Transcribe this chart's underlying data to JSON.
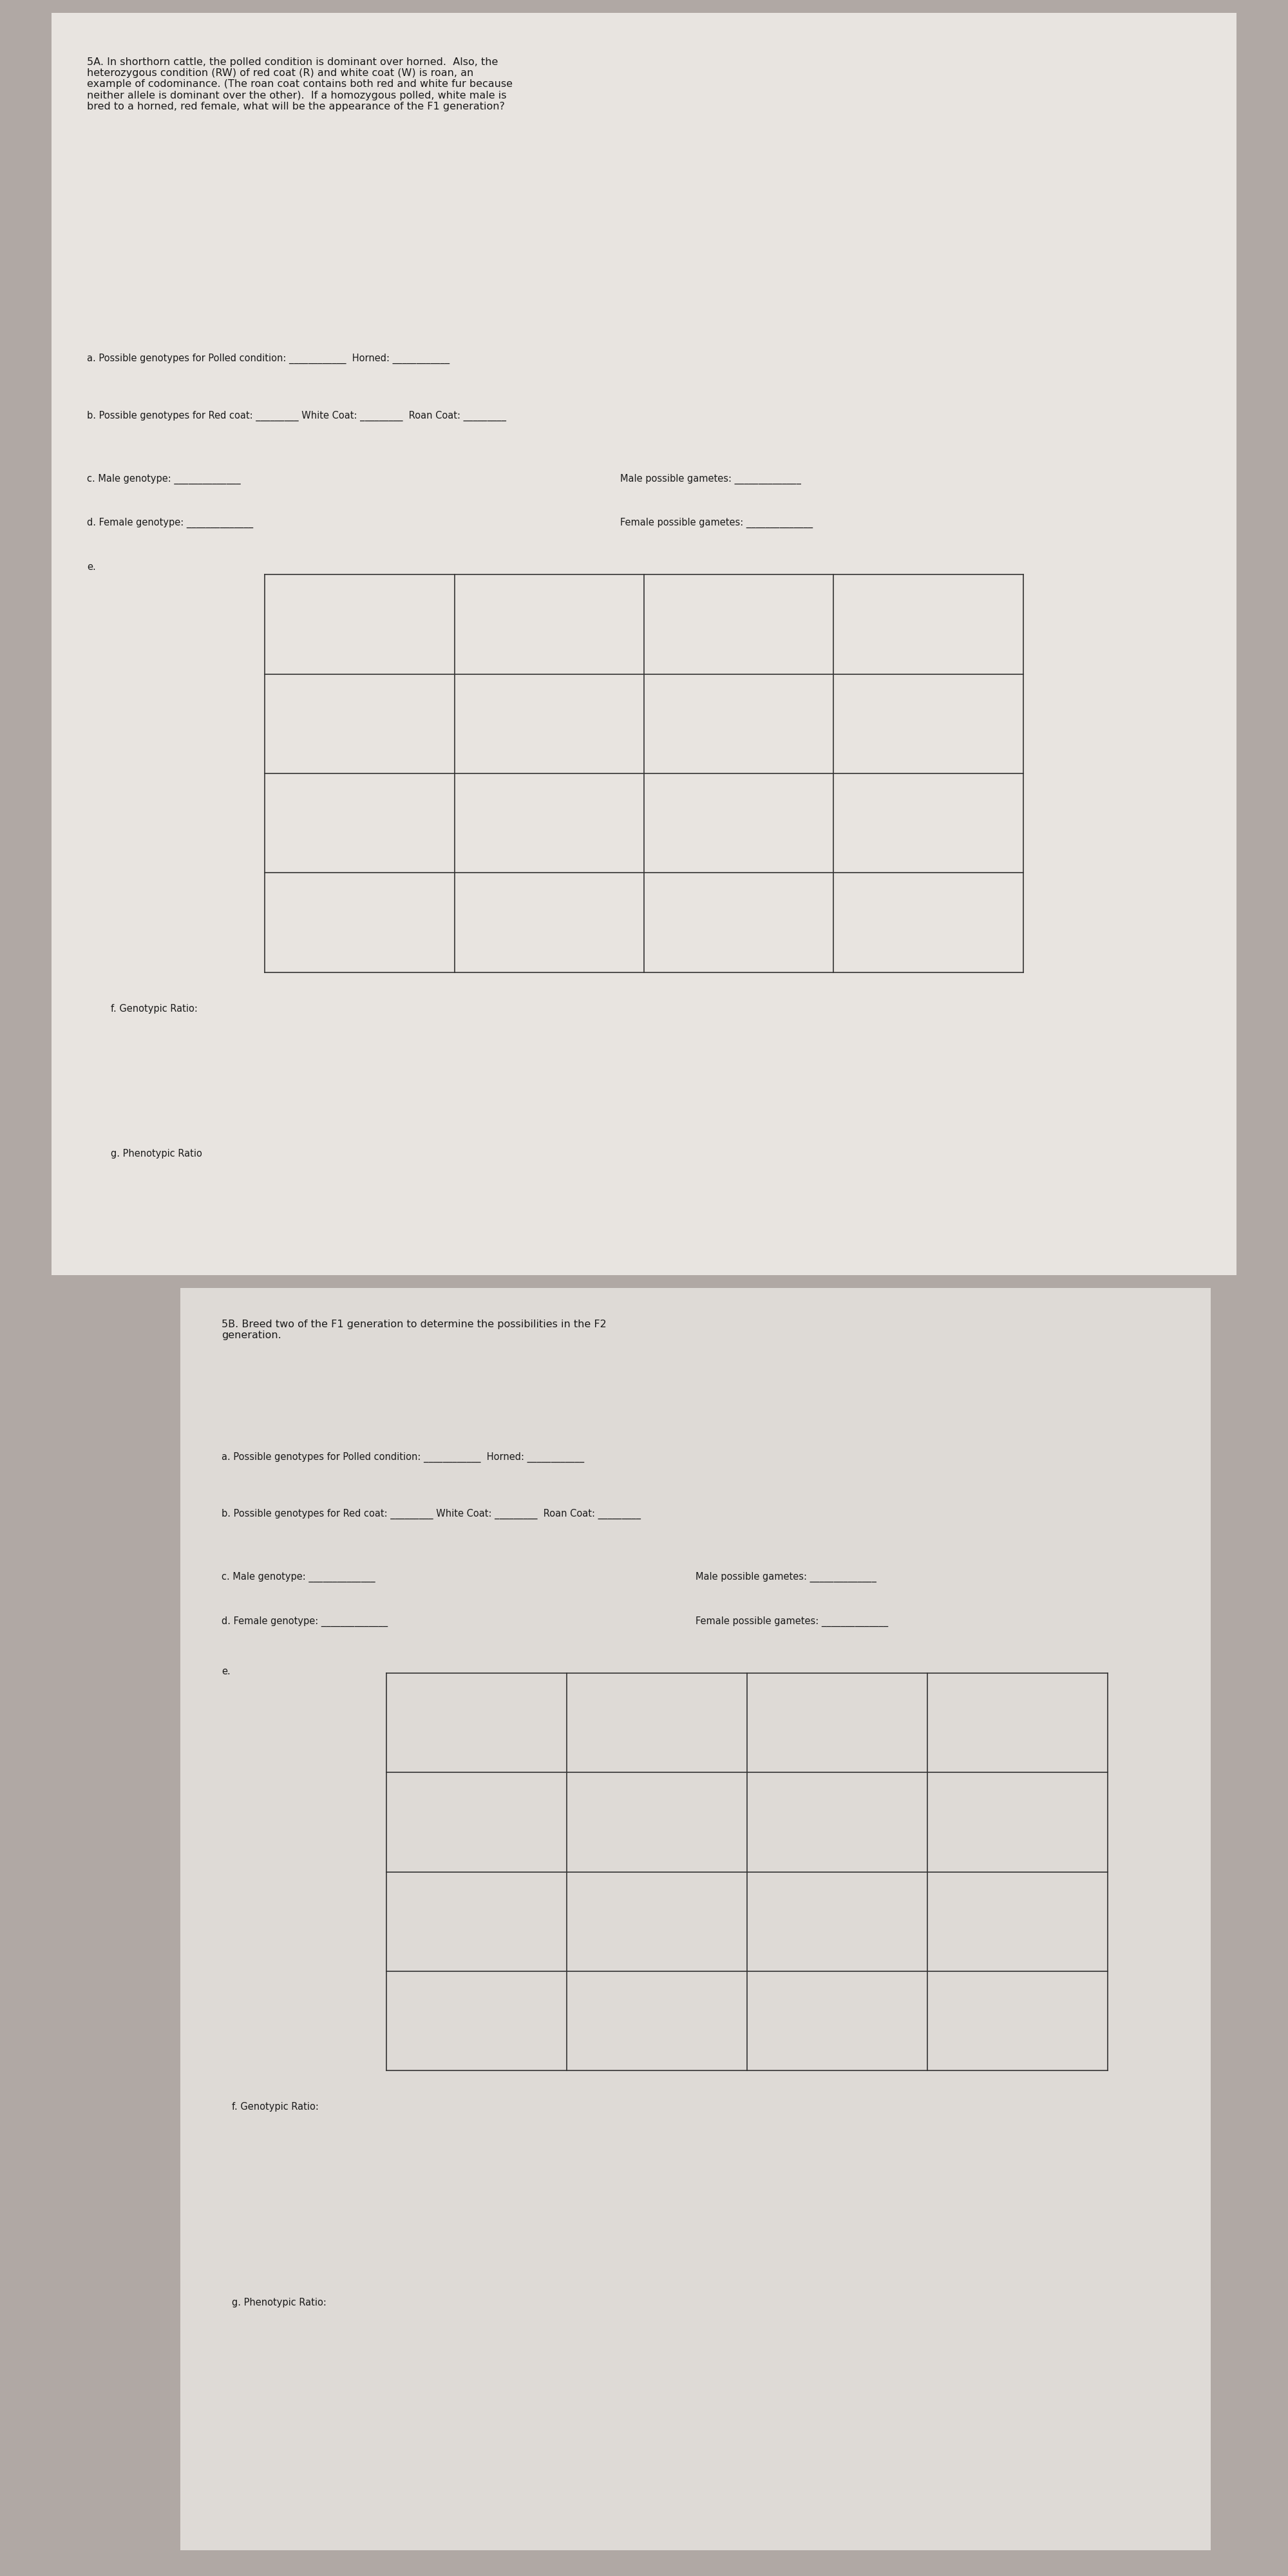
{
  "bg_top": "#c8c0bc",
  "bg_bottom": "#d0c8c4",
  "paper_color": "#e8e4e0",
  "paper2_color": "#dedad6",
  "text_color": "#1a1a1a",
  "line_color": "#333333",
  "title_5A": "5A. In shorthorn cattle, the polled condition is dominant over horned.  Also, the\nheterozygous condition (RW) of red coat (R) and white coat (W) is roan, an\nexample of codominance. (The roan coat contains both red and white fur because\nneither allele is dominant over the other).  If a homozygous polled, white male is\nbred to a horned, red female, what will be the appearance of the F1 generation?",
  "line_a_5A": "a. Possible genotypes for Polled condition: ____________  Horned: ____________",
  "line_b_5A": "b. Possible genotypes for Red coat: _________ White Coat: _________  Roan Coat: _________",
  "line_c_5A": "c. Male genotype: ______________",
  "line_c2_5A": "Male possible gametes: ______________",
  "line_d_5A": "d. Female genotype: ______________",
  "line_d2_5A": "Female possible gametes: ______________",
  "label_e_5A": "e.",
  "label_f_5A": "f. Genotypic Ratio:",
  "label_g_5A": "g. Phenotypic Ratio",
  "title_5B": "5B. Breed two of the F1 generation to determine the possibilities in the F2\ngeneration.",
  "line_a_5B": "a. Possible genotypes for Polled condition: ____________  Horned: ____________",
  "line_b_5B": "b. Possible genotypes for Red coat: _________ White Coat: _________  Roan Coat: _________",
  "line_c_5B": "c. Male genotype: ______________",
  "line_c2_5B": "Male possible gametes: ______________",
  "line_d_5B": "d. Female genotype: ______________",
  "line_d2_5B": "Female possible gametes: ______________",
  "label_e_5B": "e.",
  "label_f_5B": "f. Genotypic Ratio:",
  "label_g_5B": "g. Phenotypic Ratio:",
  "grid_rows": 4,
  "grid_cols": 4
}
